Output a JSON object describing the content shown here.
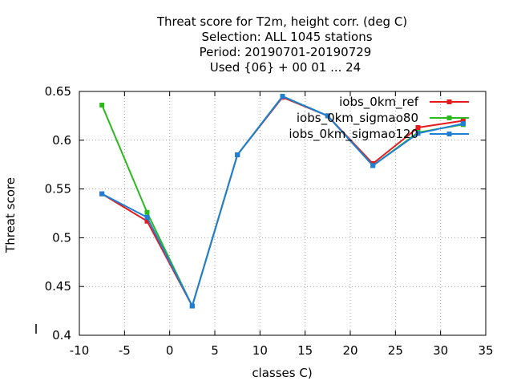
{
  "chart_data": {
    "type": "line",
    "title_lines": [
      "Threat score  for T2m, height corr. (deg C)",
      "Selection: ALL   1045 stations",
      "Period: 20190701-20190729",
      "Used {06} + 00 01 ... 24"
    ],
    "xlabel": "classes C)",
    "ylabel": "Threat score",
    "xlim": [
      -10,
      35
    ],
    "ylim": [
      0.4,
      0.65
    ],
    "xticks": [
      -10,
      -5,
      0,
      5,
      10,
      15,
      20,
      25,
      30,
      35
    ],
    "yticks": [
      0.4,
      0.45,
      0.5,
      0.55,
      0.6,
      0.65
    ],
    "ytick_labels": [
      "0.4",
      "0.45",
      "0.5",
      "0.55",
      "0.6",
      "0.65"
    ],
    "grid": true,
    "legend_position": "top-right",
    "series": [
      {
        "name": "iobs_0km_ref",
        "color": "#e41a1c",
        "x": [
          -7.5,
          -2.5,
          2.5,
          7.5,
          12.5,
          17.5,
          22.5,
          27.5,
          32.5
        ],
        "y": [
          0.545,
          0.517,
          0.43,
          0.585,
          0.644,
          0.625,
          0.576,
          0.613,
          0.62
        ]
      },
      {
        "name": "iobs_0km_sigmao80",
        "color": "#2bb91d",
        "x": [
          -7.5,
          -2.5,
          2.5,
          7.5,
          12.5,
          17.5,
          22.5,
          27.5,
          32.5
        ],
        "y": [
          0.636,
          0.526,
          0.43,
          0.585,
          0.645,
          0.625,
          0.574,
          0.608,
          0.616
        ]
      },
      {
        "name": "iobs_0km_sigmao120",
        "color": "#1f7fd6",
        "x": [
          -7.5,
          -2.5,
          2.5,
          7.5,
          12.5,
          17.5,
          22.5,
          27.5,
          32.5
        ],
        "y": [
          0.545,
          0.521,
          0.43,
          0.585,
          0.645,
          0.625,
          0.574,
          0.607,
          0.617
        ]
      }
    ]
  }
}
